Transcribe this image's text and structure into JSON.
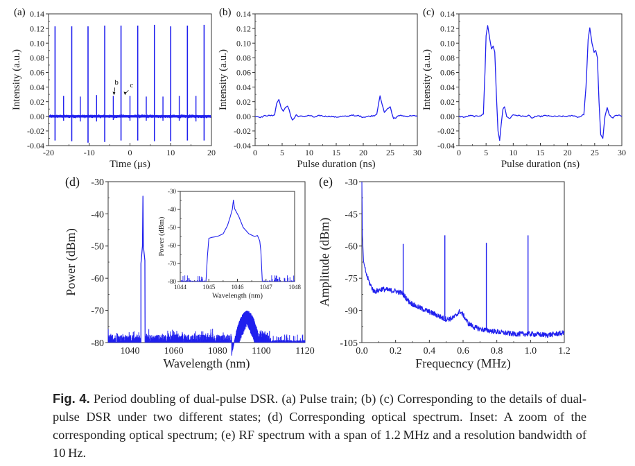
{
  "figure": {
    "caption_label": "Fig. 4.",
    "caption_text": "Period doubling of dual-pulse DSR. (a) Pulse train; (b) (c) Corresponding to the details of dual-pulse DSR under two different states; (d) Corresponding optical spectrum. Inset:  A zoom of the corresponding optical spectrum; (e) RF spectrum with a span of 1.2 MHz and a resolution bandwidth of 10 Hz.",
    "line_color": "#2020ee"
  },
  "chart_data": [
    {
      "id": "a",
      "panel_label": "(a)",
      "type": "line",
      "title": "Pulse train",
      "xlabel": "Time (μs)",
      "ylabel": "Intensity (a.u.)",
      "xlim": [
        -20,
        20
      ],
      "ylim": [
        -0.04,
        0.14
      ],
      "xticks": [
        -20,
        -10,
        0,
        10,
        20
      ],
      "xtick_labels": [
        "-20",
        "-10",
        "0",
        "10",
        "20"
      ],
      "yticks": [
        -0.04,
        -0.02,
        0.0,
        0.02,
        0.04,
        0.06,
        0.08,
        0.1,
        0.12,
        0.14
      ],
      "ytick_labels": [
        "-0.04",
        "-0.02",
        "0.00",
        "0.02",
        "0.04",
        "0.06",
        "0.08",
        "0.10",
        "0.12",
        "0.14"
      ],
      "grid": false,
      "baseline_noise": 0.002,
      "tall_pulses": [
        {
          "t": -18.4,
          "peak": 0.123,
          "trough": -0.033
        },
        {
          "t": -14.3,
          "peak": 0.123,
          "trough": -0.034
        },
        {
          "t": -10.3,
          "peak": 0.123,
          "trough": -0.036
        },
        {
          "t": -6.2,
          "peak": 0.124,
          "trough": -0.035
        },
        {
          "t": -2.2,
          "peak": 0.124,
          "trough": -0.033
        },
        {
          "t": 1.9,
          "peak": 0.124,
          "trough": -0.033
        },
        {
          "t": 6.0,
          "peak": 0.125,
          "trough": -0.034
        },
        {
          "t": 10.0,
          "peak": 0.123,
          "trough": -0.034
        },
        {
          "t": 14.1,
          "peak": 0.124,
          "trough": -0.033
        },
        {
          "t": 18.2,
          "peak": 0.125,
          "trough": -0.033
        }
      ],
      "short_pulses": [
        {
          "t": -16.3,
          "peak": 0.028,
          "trough": -0.006
        },
        {
          "t": -12.2,
          "peak": 0.027,
          "trough": -0.007
        },
        {
          "t": -8.2,
          "peak": 0.029,
          "trough": -0.007
        },
        {
          "t": -4.1,
          "peak": 0.028,
          "trough": -0.005
        },
        {
          "t": 0.0,
          "peak": 0.028,
          "trough": -0.006
        },
        {
          "t": 4.0,
          "peak": 0.027,
          "trough": -0.006
        },
        {
          "t": 8.1,
          "peak": 0.027,
          "trough": -0.006
        },
        {
          "t": 12.1,
          "peak": 0.028,
          "trough": -0.006
        },
        {
          "t": 16.2,
          "peak": 0.028,
          "trough": -0.007
        }
      ],
      "annotations": [
        {
          "text": "b",
          "x": -4.1,
          "y": 0.028
        },
        {
          "text": "c",
          "x": -1.9,
          "y": 0.028
        }
      ]
    },
    {
      "id": "b",
      "panel_label": "(b)",
      "type": "line",
      "title": "Dual-pulse DSR detail, state b",
      "xlabel": "Pulse duration (ns)",
      "ylabel": "Intensity (a.u.)",
      "xlim": [
        0,
        30
      ],
      "ylim": [
        -0.04,
        0.14
      ],
      "xticks": [
        0,
        5,
        10,
        15,
        20,
        25,
        30
      ],
      "xtick_labels": [
        "0",
        "5",
        "10",
        "15",
        "20",
        "25",
        "30"
      ],
      "yticks": [
        -0.04,
        -0.02,
        0.0,
        0.02,
        0.04,
        0.06,
        0.08,
        0.1,
        0.12,
        0.14
      ],
      "ytick_labels": [
        "-0.04",
        "-0.02",
        "0.00",
        "0.02",
        "0.04",
        "0.06",
        "0.08",
        "0.10",
        "0.12",
        "0.14"
      ],
      "grid": false,
      "x": [
        0,
        1,
        2,
        3,
        3.6,
        4.0,
        4.4,
        4.8,
        5.2,
        5.6,
        6.0,
        6.3,
        6.6,
        6.9,
        7.2,
        7.6,
        8.0,
        9,
        10,
        11,
        12,
        13,
        14,
        15,
        16,
        17,
        18,
        18.5,
        19,
        20,
        21,
        22,
        22.5,
        22.9,
        23.1,
        23.5,
        23.9,
        24.3,
        24.7,
        25.0,
        25.3,
        25.6,
        26.0,
        26.5,
        27,
        28,
        29,
        30
      ],
      "y": [
        0.0,
        -0.001,
        0.001,
        0.001,
        0.002,
        0.018,
        0.023,
        0.012,
        0.007,
        0.012,
        0.014,
        0.009,
        0.0,
        -0.005,
        -0.003,
        0.002,
        0.0,
        0.0,
        0.001,
        -0.001,
        0.001,
        0.0,
        0.0,
        -0.001,
        0.0,
        0.0,
        0.002,
        0.0,
        0.001,
        -0.001,
        0.0,
        0.001,
        0.003,
        0.02,
        0.028,
        0.016,
        0.006,
        0.009,
        0.011,
        0.013,
        0.004,
        -0.003,
        -0.002,
        0.001,
        0.001,
        0.0,
        0.001,
        0.0
      ]
    },
    {
      "id": "c",
      "panel_label": "(c)",
      "type": "line",
      "title": "Dual-pulse DSR detail, state c",
      "xlabel": "Pulse duration (ns)",
      "ylabel": "Intensity (a.u.)",
      "xlim": [
        0,
        30
      ],
      "ylim": [
        -0.04,
        0.14
      ],
      "xticks": [
        0,
        5,
        10,
        15,
        20,
        25,
        30
      ],
      "xtick_labels": [
        "0",
        "5",
        "10",
        "15",
        "20",
        "25",
        "30"
      ],
      "yticks": [
        -0.04,
        -0.02,
        0.0,
        0.02,
        0.04,
        0.06,
        0.08,
        0.1,
        0.12,
        0.14
      ],
      "ytick_labels": [
        "-0.04",
        "-0.02",
        "0.00",
        "0.02",
        "0.04",
        "0.06",
        "0.08",
        "0.10",
        "0.12",
        "0.14"
      ],
      "grid": false,
      "x": [
        0,
        1,
        2,
        3,
        4,
        4.5,
        4.8,
        5.0,
        5.3,
        5.7,
        6.0,
        6.3,
        6.6,
        6.9,
        7.2,
        7.5,
        7.8,
        8.1,
        8.4,
        8.8,
        9.3,
        10,
        11,
        12,
        13,
        13.5,
        14,
        15,
        16,
        17,
        18,
        19,
        20,
        21,
        22,
        23,
        23.4,
        23.8,
        24.1,
        24.5,
        24.9,
        25.2,
        25.5,
        25.8,
        26.1,
        26.5,
        26.9,
        27.3,
        27.7,
        28.2,
        29,
        29.5,
        30
      ],
      "y": [
        0.0,
        -0.001,
        0.001,
        0.0,
        0.001,
        0.003,
        0.06,
        0.11,
        0.124,
        0.105,
        0.092,
        0.096,
        0.088,
        0.03,
        -0.02,
        -0.033,
        -0.01,
        0.01,
        0.013,
        0.0,
        -0.003,
        0.002,
        0.001,
        0.0,
        0.001,
        -0.003,
        0.0,
        0.0,
        0.001,
        0.0,
        0.0,
        0.0,
        0.0,
        0.001,
        -0.001,
        0.002,
        0.04,
        0.105,
        0.121,
        0.1,
        0.088,
        0.09,
        0.08,
        0.02,
        -0.025,
        -0.03,
        0.0,
        0.012,
        0.002,
        -0.002,
        0.001,
        0.002,
        0.0
      ]
    },
    {
      "id": "d",
      "panel_label": "(d)",
      "type": "line",
      "title": "Optical spectrum",
      "xlabel": "Wavelength (nm)",
      "ylabel": "Power (dBm)",
      "xlim": [
        1030,
        1120
      ],
      "ylim": [
        -80,
        -30
      ],
      "xticks": [
        1040,
        1060,
        1080,
        1100,
        1120
      ],
      "xtick_labels": [
        "1040",
        "1060",
        "1080",
        "1100",
        "1120"
      ],
      "yticks": [
        -80,
        -70,
        -60,
        -50,
        -40,
        -30
      ],
      "ytick_labels": [
        "-80",
        "-70",
        "-60",
        "-50",
        "-40",
        "-30"
      ],
      "grid": false,
      "noise_floor": {
        "level": -78,
        "range": [
          -80,
          -75.5
        ]
      },
      "main_peak": {
        "center": 1045.9,
        "peak": -34.5,
        "shoulder": -55.5,
        "edges": [
          1045.0,
          1046.9
        ]
      },
      "secondary_band": {
        "center": 1093.5,
        "peak": -70.5,
        "edges": [
          1086.5,
          1099.0
        ]
      },
      "tail_noise_after": 1104,
      "inset": {
        "xlabel": "Wavelength (nm)",
        "ylabel": "Power (dBm)",
        "xlim": [
          1044,
          1048
        ],
        "ylim": [
          -80,
          -30
        ],
        "xticks": [
          1044,
          1045,
          1046,
          1047,
          1048
        ],
        "xtick_labels": [
          "1044",
          "1045",
          "1046",
          "1047",
          "1048"
        ],
        "yticks": [
          -80,
          -70,
          -60,
          -50,
          -40,
          -30
        ],
        "ytick_labels": [
          "-80",
          "-70",
          "-60",
          "-50",
          "-40",
          "-30"
        ],
        "x": [
          1044.9,
          1044.95,
          1045.0,
          1045.1,
          1045.3,
          1045.5,
          1045.65,
          1045.75,
          1045.82,
          1045.86,
          1045.9,
          1045.95,
          1046.05,
          1046.2,
          1046.4,
          1046.6,
          1046.7,
          1046.78,
          1046.82,
          1046.87
        ],
        "y": [
          -80,
          -66,
          -56,
          -55.5,
          -55,
          -53.5,
          -49,
          -44,
          -40,
          -34.8,
          -39.5,
          -41,
          -44,
          -50,
          -53.5,
          -55,
          -54.5,
          -57.5,
          -63,
          -80
        ]
      }
    },
    {
      "id": "e",
      "panel_label": "(e)",
      "type": "line",
      "title": "RF spectrum",
      "xlabel": "Frequecncy (MHz)",
      "ylabel": "Amplitude (dBm)",
      "xlim": [
        0.0,
        1.2
      ],
      "ylim": [
        -105,
        -30
      ],
      "xticks": [
        0.0,
        0.2,
        0.4,
        0.6,
        0.8,
        1.0,
        1.2
      ],
      "xtick_labels": [
        "0.0",
        "0.2",
        "0.4",
        "0.6",
        "0.8",
        "1.0",
        "1.2"
      ],
      "yticks": [
        -105,
        -90,
        -75,
        -60,
        -45,
        -30
      ],
      "ytick_labels": [
        "-105",
        "-90",
        "-75",
        "-60",
        "-45",
        "-30"
      ],
      "grid": false,
      "x": [
        0.0,
        0.003,
        0.01,
        0.02,
        0.03,
        0.05,
        0.07,
        0.09,
        0.12,
        0.15,
        0.2,
        0.24,
        0.28,
        0.32,
        0.38,
        0.44,
        0.49,
        0.52,
        0.55,
        0.58,
        0.6,
        0.63,
        0.67,
        0.72,
        0.8,
        0.9,
        1.0,
        1.1,
        1.2
      ],
      "y": [
        -30,
        -55,
        -67,
        -71,
        -74,
        -78,
        -81,
        -81,
        -80,
        -80.5,
        -81,
        -82,
        -86,
        -88,
        -90,
        -92,
        -94,
        -94,
        -93,
        -90.5,
        -92,
        -96,
        -98,
        -99,
        -100,
        -101,
        -101,
        -101.5,
        -100.5
      ],
      "spikes": [
        {
          "f": 0.245,
          "amp": -59
        },
        {
          "f": 0.492,
          "amp": -55
        },
        {
          "f": 0.738,
          "amp": -58.5
        },
        {
          "f": 0.985,
          "amp": -55
        }
      ]
    }
  ]
}
